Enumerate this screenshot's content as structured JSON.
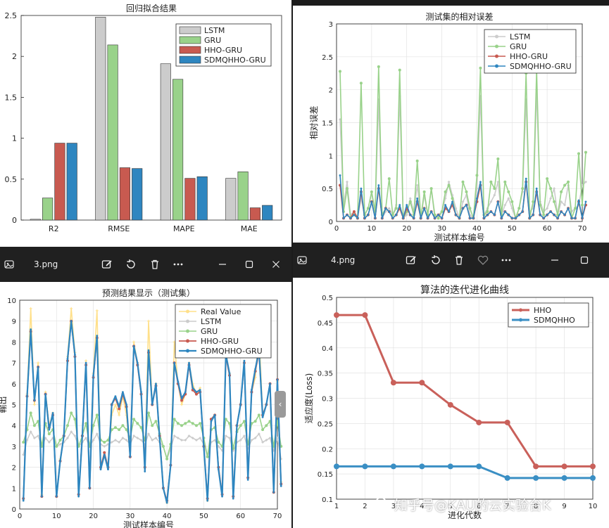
{
  "window2": {
    "title_text": ""
  },
  "window3": {
    "filename": "3.png"
  },
  "window4": {
    "filename": "4.png"
  },
  "toolbar_icons": [
    "edit-image-icon",
    "rotate-icon",
    "delete-icon",
    "more-icon",
    "minimize-icon",
    "maximize-icon",
    "close-icon"
  ],
  "watermark": {
    "text": "知乎号@KAU的云实验台K"
  },
  "colors": {
    "lstm": "#cccccc",
    "gru": "#99d28a",
    "hho": "#c85a50",
    "sdm": "#2e86c0",
    "real": "#ffe08a",
    "hho4": "#c9605a",
    "sdm4": "#3a8fc4"
  },
  "chart_data": [
    {
      "type": "bar",
      "title": "回归拟合结果",
      "categories": [
        "R2",
        "RMSE",
        "MAPE",
        "MAE"
      ],
      "ylim": [
        0,
        2.5
      ],
      "yticks": [
        "0",
        "0.5",
        "1",
        "1.5",
        "2",
        "2.5"
      ],
      "legend_position": "top-right",
      "series": [
        {
          "name": "LSTM",
          "values": [
            0.01,
            2.48,
            1.91,
            0.51
          ]
        },
        {
          "name": "GRU",
          "values": [
            0.27,
            2.14,
            1.72,
            0.59
          ]
        },
        {
          "name": "HHO-GRU",
          "values": [
            0.94,
            0.64,
            0.51,
            0.15
          ]
        },
        {
          "name": "SDMQHHO-GRU",
          "values": [
            0.94,
            0.63,
            0.53,
            0.18
          ]
        }
      ]
    },
    {
      "type": "line",
      "title": "测试集的相对误差",
      "xlabel": "测试样本编号",
      "ylabel": "相对误差",
      "xlim": [
        0,
        70
      ],
      "ylim": [
        0,
        3
      ],
      "xticks": [
        "0",
        "10",
        "20",
        "30",
        "40",
        "50",
        "60",
        "70"
      ],
      "yticks": [
        "0",
        "0.5",
        "1",
        "1.5",
        "2",
        "2.5",
        "3"
      ],
      "grid": true,
      "legend_position": "top-right",
      "series": [
        {
          "name": "LSTM",
          "values": [
            1.55,
            0.25,
            0.6,
            0.1,
            0.15,
            0.05,
            0.35,
            0.1,
            0.2,
            0.45,
            0.1,
            1.85,
            0.05,
            0.15,
            0.2,
            0.1,
            0.25,
            1.9,
            0.05,
            0.1,
            0.35,
            0.15,
            0.55,
            0.05,
            0.4,
            0.1,
            0.5,
            0.05,
            0.1,
            0.15,
            0.35,
            0.6,
            0.4,
            0.2,
            0.05,
            0.3,
            0.4,
            0.1,
            0.05,
            0.5,
            1.9,
            0.1,
            0.2,
            0.3,
            0.4,
            0.6,
            0.1,
            0.25,
            0.35,
            0.2,
            0.05,
            0.2,
            0.45,
            1.85,
            0.15,
            0.2,
            2.0,
            0.3,
            0.15,
            0.2,
            0.35,
            0.5,
            0.1,
            0.3,
            0.25,
            0.55,
            0.15,
            0.2,
            0.25,
            0.55,
            0.6
          ]
        },
        {
          "name": "GRU",
          "values": [
            2.28,
            0.15,
            0.5,
            0.05,
            0.1,
            0.05,
            2.1,
            0.1,
            0.2,
            0.45,
            0.15,
            2.35,
            0.1,
            0.2,
            0.65,
            0.1,
            0.2,
            2.3,
            0.05,
            0.15,
            0.3,
            0.1,
            0.92,
            0.05,
            0.45,
            0.1,
            0.5,
            0.1,
            0.05,
            0.15,
            0.45,
            0.55,
            0.35,
            0.1,
            0.05,
            0.6,
            0.45,
            0.2,
            0.05,
            0.7,
            2.33,
            0.1,
            0.15,
            0.6,
            0.5,
            0.95,
            0.1,
            0.6,
            0.45,
            0.3,
            0.05,
            0.2,
            0.5,
            2.25,
            0.05,
            0.3,
            2.3,
            0.25,
            0.1,
            0.65,
            0.5,
            0.3,
            0.1,
            0.45,
            0.55,
            0.6,
            0.05,
            0.2,
            1.03,
            0.25,
            1.05
          ]
        },
        {
          "name": "HHO-GRU",
          "values": [
            0.55,
            0.05,
            0.1,
            0.05,
            0.15,
            0.05,
            0.45,
            0.05,
            0.1,
            0.3,
            0.05,
            0.5,
            0.05,
            0.2,
            0.15,
            0.05,
            0.1,
            0.2,
            0.05,
            0.2,
            0.1,
            0.05,
            0.3,
            0.05,
            0.2,
            0.05,
            0.15,
            0.05,
            0.1,
            0.05,
            0.2,
            0.15,
            0.25,
            0.1,
            0.05,
            0.2,
            0.25,
            0.05,
            0.05,
            0.3,
            0.55,
            0.05,
            0.1,
            0.15,
            0.1,
            0.3,
            0.05,
            0.15,
            0.1,
            0.05,
            0.05,
            0.1,
            0.15,
            0.6,
            0.05,
            0.1,
            0.45,
            0.1,
            0.05,
            0.1,
            0.15,
            0.1,
            0.05,
            0.15,
            0.1,
            0.2,
            0.05,
            0.05,
            0.3,
            0.05,
            0.25
          ]
        },
        {
          "name": "SDMQHHO-GRU",
          "values": [
            0.7,
            0.05,
            0.1,
            0.05,
            0.1,
            0.05,
            0.5,
            0.05,
            0.1,
            0.3,
            0.05,
            0.55,
            0.05,
            0.2,
            0.15,
            0.05,
            0.1,
            0.25,
            0.05,
            0.25,
            0.1,
            0.05,
            0.35,
            0.05,
            0.2,
            0.05,
            0.15,
            0.05,
            0.1,
            0.05,
            0.25,
            0.15,
            0.3,
            0.1,
            0.05,
            0.2,
            0.25,
            0.05,
            0.05,
            0.35,
            0.6,
            0.05,
            0.1,
            0.15,
            0.1,
            0.3,
            0.05,
            0.15,
            0.1,
            0.05,
            0.05,
            0.1,
            0.15,
            0.65,
            0.05,
            0.1,
            0.5,
            0.1,
            0.05,
            0.1,
            0.15,
            0.1,
            0.05,
            0.15,
            0.1,
            0.2,
            0.05,
            0.05,
            0.32,
            0.05,
            0.3
          ]
        }
      ]
    },
    {
      "type": "line",
      "title": "预测结果显示（测试集）",
      "xlabel": "测试样本编号",
      "ylabel": "輸出",
      "xlim": [
        0,
        70
      ],
      "ylim": [
        0,
        10
      ],
      "xticks": [
        "0",
        "10",
        "20",
        "30",
        "40",
        "50",
        "60",
        "70"
      ],
      "yticks": [
        "0",
        "1",
        "2",
        "3",
        "4",
        "5",
        "6",
        "7",
        "8",
        "9",
        "10"
      ],
      "grid": true,
      "legend_position": "top-right",
      "series": [
        {
          "name": "Real Value",
          "values": [
            0.5,
            5.5,
            9.6,
            5.0,
            7.0,
            0.7,
            5.6,
            4.0,
            4.6,
            0.6,
            2.4,
            3.5,
            7.3,
            9.6,
            7.5,
            0.7,
            3.5,
            7.1,
            1.0,
            6.5,
            9.5,
            2.0,
            2.7,
            2.0,
            4.5,
            5.0,
            4.5,
            5.4,
            4.5,
            2.5,
            8.0,
            7.0,
            5.5,
            2.0,
            9.0,
            5.0,
            6.0,
            3.5,
            1.0,
            0.3,
            2.1,
            8.0,
            6.0,
            5.0,
            5.5,
            7.0,
            6.0,
            5.5,
            5.8,
            3.0,
            0.4,
            4.3,
            4.5,
            2.0,
            0.7,
            7.5,
            6.5,
            0.6,
            4.0,
            5.0,
            7.0,
            1.5,
            5.6,
            6.3,
            8.5,
            4.5,
            5.0,
            6.0,
            0.8,
            6.1,
            1.3
          ]
        },
        {
          "name": "LSTM",
          "values": [
            2.6,
            3.3,
            3.7,
            3.4,
            3.5,
            3.0,
            3.4,
            3.2,
            3.4,
            3.0,
            3.1,
            3.2,
            3.4,
            3.7,
            3.5,
            3.0,
            3.2,
            3.4,
            3.0,
            3.3,
            3.6,
            3.1,
            3.0,
            3.1,
            3.2,
            3.3,
            3.2,
            3.4,
            3.3,
            3.1,
            3.5,
            3.4,
            3.3,
            3.1,
            3.6,
            3.3,
            3.4,
            3.2,
            3.0,
            2.4,
            2.9,
            3.5,
            3.4,
            3.3,
            3.3,
            3.5,
            3.4,
            3.3,
            3.4,
            3.1,
            2.5,
            3.2,
            3.3,
            3.0,
            2.8,
            3.5,
            3.4,
            2.8,
            3.2,
            3.3,
            3.5,
            2.9,
            3.3,
            3.4,
            3.6,
            3.2,
            3.3,
            3.4,
            2.8,
            3.4,
            2.4
          ]
        },
        {
          "name": "GRU",
          "values": [
            3.2,
            3.8,
            4.6,
            4.0,
            4.2,
            3.0,
            4.1,
            3.6,
            3.8,
            3.0,
            3.3,
            3.5,
            4.0,
            4.6,
            4.3,
            3.0,
            3.5,
            4.1,
            3.0,
            4.0,
            4.5,
            3.3,
            3.2,
            3.3,
            3.8,
            3.9,
            3.8,
            4.0,
            3.8,
            3.4,
            4.3,
            4.1,
            3.9,
            3.3,
            4.6,
            4.0,
            4.2,
            3.6,
            3.0,
            2.4,
            3.1,
            4.3,
            4.1,
            4.0,
            4.1,
            4.2,
            4.1,
            4.0,
            4.1,
            3.4,
            2.5,
            3.8,
            3.9,
            3.2,
            3.0,
            4.3,
            4.1,
            2.9,
            3.7,
            4.0,
            4.2,
            3.1,
            4.1,
            4.2,
            4.5,
            3.8,
            4.0,
            4.2,
            3.0,
            4.2,
            3.0
          ]
        },
        {
          "name": "HHO-GRU",
          "values": [
            0.5,
            5.4,
            8.5,
            5.2,
            6.8,
            0.6,
            5.5,
            3.9,
            4.5,
            0.6,
            2.3,
            3.5,
            7.1,
            9.0,
            7.3,
            0.7,
            3.5,
            6.9,
            1.0,
            6.3,
            8.2,
            2.0,
            2.7,
            2.0,
            5.0,
            5.3,
            4.8,
            5.5,
            4.9,
            2.5,
            7.8,
            6.9,
            5.5,
            2.0,
            7.5,
            5.0,
            5.9,
            3.5,
            1.0,
            0.4,
            2.1,
            7.0,
            6.0,
            5.2,
            5.5,
            6.9,
            5.7,
            5.5,
            5.6,
            3.0,
            0.5,
            4.3,
            4.5,
            2.0,
            0.7,
            7.3,
            6.4,
            0.6,
            4.0,
            5.0,
            7.0,
            1.5,
            5.6,
            6.6,
            7.5,
            4.5,
            5.0,
            6.0,
            0.8,
            6.2,
            1.2
          ]
        },
        {
          "name": "SDMQHHO-GRU",
          "values": [
            0.4,
            5.4,
            8.6,
            5.2,
            6.8,
            0.6,
            5.5,
            3.8,
            4.6,
            0.6,
            2.3,
            3.5,
            7.2,
            9.0,
            7.4,
            0.6,
            3.5,
            7.0,
            1.0,
            6.4,
            8.3,
            1.9,
            2.6,
            1.9,
            5.0,
            5.4,
            4.9,
            5.6,
            5.0,
            2.5,
            7.8,
            7.0,
            5.6,
            1.8,
            7.6,
            5.0,
            6.0,
            3.4,
            1.0,
            0.3,
            2.1,
            7.0,
            6.1,
            5.3,
            5.6,
            7.0,
            5.8,
            5.6,
            5.7,
            3.0,
            0.4,
            4.2,
            4.5,
            1.9,
            0.6,
            7.4,
            6.5,
            0.5,
            4.0,
            5.0,
            7.1,
            1.4,
            5.7,
            6.7,
            7.6,
            4.4,
            5.0,
            6.0,
            0.8,
            6.2,
            1.1
          ]
        }
      ]
    },
    {
      "type": "line",
      "title": "算法的迭代进化曲线",
      "xlabel": "进化代数",
      "ylabel": "适应度(Loss)",
      "xlim": [
        1,
        10
      ],
      "ylim": [
        0.1,
        0.5
      ],
      "xticks": [
        "1",
        "2",
        "3",
        "4",
        "5",
        "6",
        "7",
        "8",
        "9",
        "10"
      ],
      "yticks": [
        "0.1",
        "0.15",
        "0.2",
        "0.25",
        "0.3",
        "0.35",
        "0.4",
        "0.45",
        "0.5"
      ],
      "grid": true,
      "legend_position": "top-right",
      "series": [
        {
          "name": "HHO",
          "values": [
            0.465,
            0.465,
            0.331,
            0.331,
            0.287,
            0.252,
            0.252,
            0.165,
            0.165,
            0.165
          ]
        },
        {
          "name": "SDMQHHO",
          "values": [
            0.165,
            0.165,
            0.165,
            0.165,
            0.165,
            0.165,
            0.142,
            0.142,
            0.142,
            0.142
          ]
        }
      ]
    }
  ]
}
